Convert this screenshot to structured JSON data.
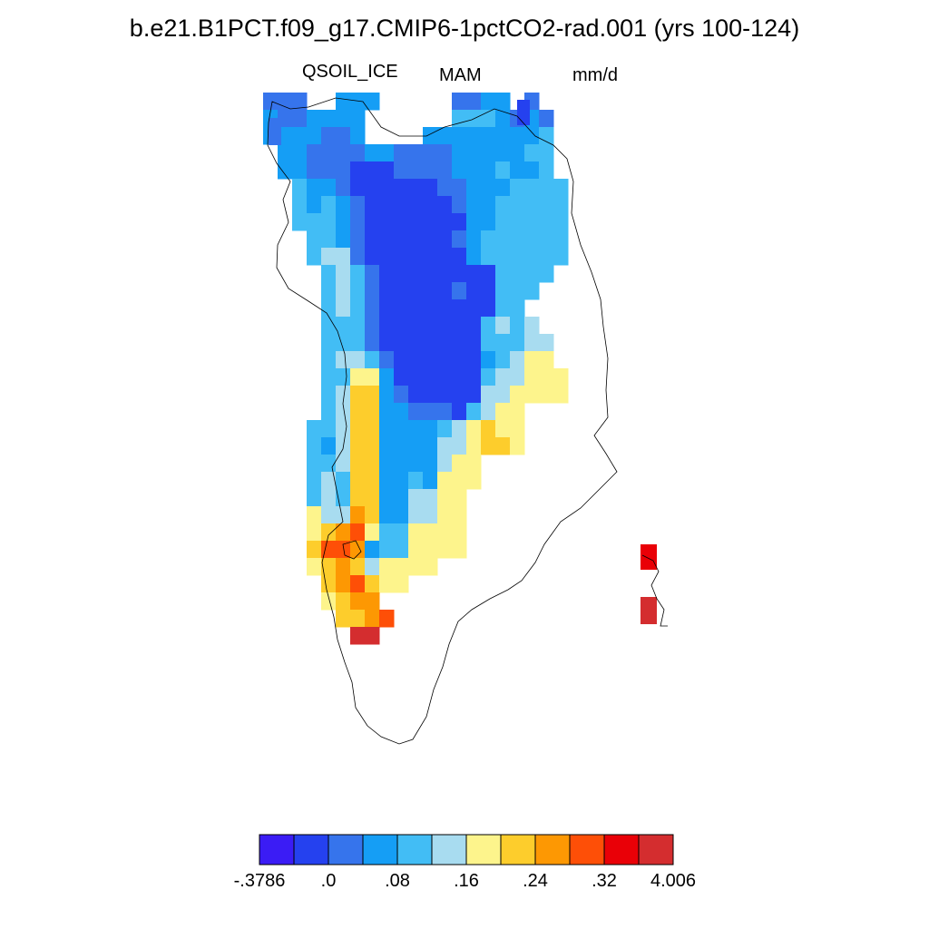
{
  "title": "b.e21.B1PCT.f09_g17.CMIP6-1pctCO2-rad.001 (yrs 100-124)",
  "variable": "QSOIL_ICE",
  "season": "MAM",
  "units": "mm/d",
  "colorbar": {
    "colors": [
      "#3b1cf5",
      "#2541ef",
      "#3674ec",
      "#159ef5",
      "#42bdf5",
      "#a8dcf0",
      "#fdf48c",
      "#fdcd2c",
      "#fd9803",
      "#fe4f07",
      "#e90007",
      "#d42d2f"
    ],
    "labels": [
      "-.3786",
      ".0",
      ".08",
      ".16",
      ".24",
      ".32",
      "4.006"
    ]
  }
}
